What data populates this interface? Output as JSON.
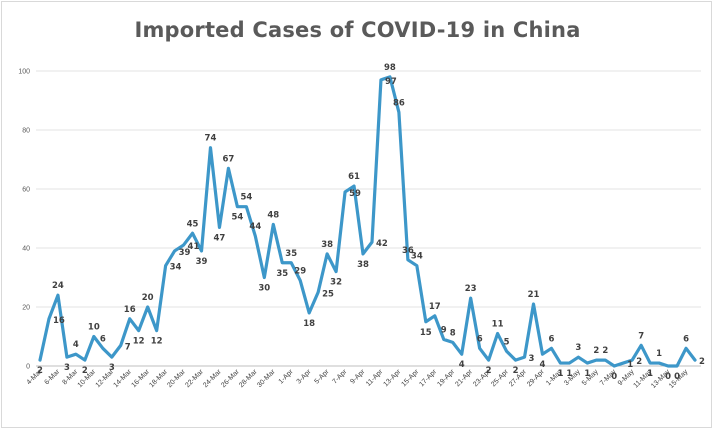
{
  "chart_data": {
    "type": "line",
    "title": "Imported Cases of COVID-19 in China",
    "xlabel": "",
    "ylabel": "",
    "ylim": [
      0,
      100
    ],
    "yticks": [
      "0",
      "20",
      "40",
      "60",
      "80",
      "100"
    ],
    "grid": true,
    "legend": "none",
    "line_color": "#3d97c9",
    "x": [
      "4-Mar",
      "5-Mar",
      "6-Mar",
      "7-Mar",
      "8-Mar",
      "9-Mar",
      "10-Mar",
      "11-Mar",
      "12-Mar",
      "13-Mar",
      "14-Mar",
      "15-Mar",
      "16-Mar",
      "17-Mar",
      "18-Mar",
      "19-Mar",
      "20-Mar",
      "21-Mar",
      "22-Mar",
      "23-Mar",
      "24-Mar",
      "25-Mar",
      "26-Mar",
      "27-Mar",
      "28-Mar",
      "29-Mar",
      "30-Mar",
      "31-Mar",
      "1-Apr",
      "2-Apr",
      "3-Apr",
      "4-Apr",
      "5-Apr",
      "6-Apr",
      "7-Apr",
      "8-Apr",
      "9-Apr",
      "10-Apr",
      "11-Apr",
      "12-Apr",
      "13-Apr",
      "14-Apr",
      "15-Apr",
      "16-Apr",
      "17-Apr",
      "18-Apr",
      "19-Apr",
      "20-Apr",
      "21-Apr",
      "22-Apr",
      "23-Apr",
      "24-Apr",
      "25-Apr",
      "26-Apr",
      "27-Apr",
      "28-Apr",
      "29-Apr",
      "30-Apr",
      "1-May",
      "2-May",
      "3-May",
      "4-May",
      "5-May",
      "6-May",
      "7-May",
      "8-May",
      "9-May",
      "10-May",
      "11-May",
      "12-May",
      "13-May",
      "14-May",
      "15-May",
      "16-May"
    ],
    "xtick_labels": [
      "4-Mar",
      "6-Mar",
      "8-Mar",
      "10-Mar",
      "12-Mar",
      "14-Mar",
      "16-Mar",
      "18-Mar",
      "20-Mar",
      "22-Mar",
      "24-Mar",
      "26-Mar",
      "28-Mar",
      "30-Mar",
      "1-Apr",
      "3-Apr",
      "5-Apr",
      "7-Apr",
      "9-Apr",
      "11-Apr",
      "13-Apr",
      "15-Apr",
      "17-Apr",
      "19-Apr",
      "21-Apr",
      "23-Apr",
      "25-Apr",
      "27-Apr",
      "29-Apr",
      "1-May",
      "3-May",
      "5-May",
      "7-May",
      "9-May",
      "11-May",
      "13-May",
      "15-May"
    ],
    "values": [
      2,
      16,
      24,
      3,
      4,
      2,
      10,
      6,
      3,
      7,
      16,
      12,
      20,
      12,
      34,
      39,
      41,
      45,
      39,
      74,
      47,
      67,
      54,
      54,
      44,
      30,
      48,
      35,
      35,
      29,
      18,
      25,
      38,
      32,
      59,
      61,
      38,
      42,
      97,
      98,
      86,
      36,
      34,
      15,
      17,
      9,
      8,
      4,
      23,
      6,
      2,
      11,
      5,
      2,
      3,
      21,
      4,
      6,
      1,
      1,
      3,
      1,
      2,
      2,
      0,
      1,
      2,
      7,
      1,
      1,
      0,
      0,
      6,
      2
    ],
    "data_labels": [
      "2",
      "16",
      "24",
      "3",
      "4",
      "2",
      "10",
      "6",
      "3",
      "7",
      "16",
      "12",
      "20",
      "12",
      "34",
      "39",
      "41",
      "45",
      "39",
      "74",
      "47",
      "67",
      "54",
      "54",
      "44",
      "30",
      "48",
      "35",
      "35",
      "29",
      "18",
      "25",
      "38",
      "32",
      "59",
      "61",
      "38",
      "42",
      "97",
      "98",
      "86",
      "36",
      "34",
      "15",
      "17",
      "9",
      "8",
      "4",
      "23",
      "6",
      "2",
      "11",
      "5",
      "2",
      "3",
      "21",
      "4",
      "6",
      "1",
      "1",
      "3",
      "1",
      "2",
      "2",
      "0",
      "1",
      "2",
      "7",
      "1",
      "1",
      "0",
      "0",
      "6",
      "2"
    ]
  }
}
